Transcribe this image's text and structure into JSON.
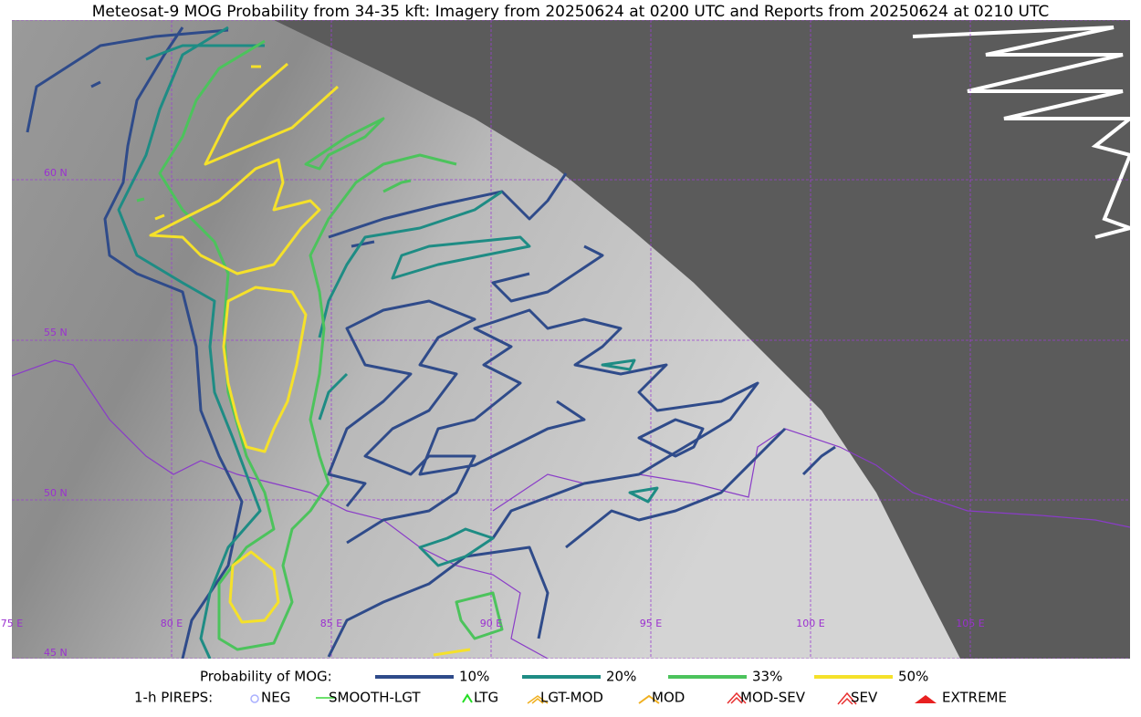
{
  "header": {
    "title": "Meteosat-9 MOG Probability from 34-35 kft: Imagery from 20250624 at 0200 UTC and Reports from 20250624 at 0210 UTC"
  },
  "map": {
    "lat_labels": [
      "60 N",
      "55 N",
      "50 N",
      "45 N"
    ],
    "lon_labels": [
      "75 E",
      "80 E",
      "85 E",
      "90 E",
      "95 E",
      "100 E",
      "105 E"
    ]
  },
  "legend": {
    "probability": {
      "label": "Probability of MOG:",
      "levels": [
        {
          "label": "10%",
          "color": "#2f4b8a"
        },
        {
          "label": "20%",
          "color": "#1e8c84"
        },
        {
          "label": "33%",
          "color": "#4cc35c"
        },
        {
          "label": "50%",
          "color": "#f5e12a"
        }
      ]
    },
    "pireps": {
      "label": "1-h PIREPS:",
      "items": [
        "NEG",
        "SMOOTH-LGT",
        "LTG",
        "LGT-MOD",
        "MOD",
        "MOD-SEV",
        "SEV",
        "EXTREME"
      ]
    }
  }
}
